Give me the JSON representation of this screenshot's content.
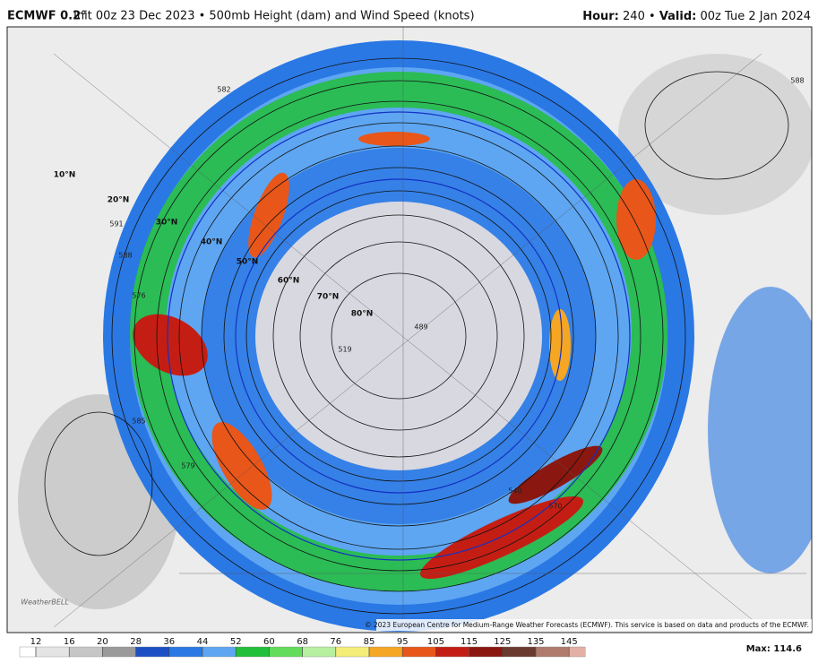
{
  "header": {
    "model": "ECMWF 0.2°",
    "title": "Init 00z 23 Dec 2023 • 500mb Height (dam) and Wind Speed (knots)",
    "hour_label": "Hour:",
    "hour": "240",
    "separator": "•",
    "valid_label": "Valid:",
    "valid": "00z Tue 2 Jan 2024"
  },
  "map": {
    "latitude_labels": [
      "10°N",
      "20°N",
      "30°N",
      "40°N",
      "50°N",
      "60°N",
      "70°N",
      "80°N"
    ],
    "contour_labels": [
      "582",
      "576",
      "588",
      "591",
      "585",
      "579",
      "570",
      "540",
      "519",
      "489",
      "588"
    ],
    "copyright": "© 2023 European Centre for Medium-Range Weather Forecasts (ECMWF). This service is based on data and products of the ECMWF.",
    "watermark": "WeatherBELL"
  },
  "colorbar": {
    "ticks": [
      12,
      16,
      20,
      28,
      36,
      44,
      52,
      60,
      68,
      76,
      85,
      95,
      105,
      115,
      125,
      135,
      145
    ],
    "colors": [
      "#ffffff",
      "#e4e4e4",
      "#c6c6c6",
      "#9a9a9a",
      "#1d4fc4",
      "#2a78e4",
      "#5ea6f2",
      "#22c03a",
      "#62dc5a",
      "#b6f0a0",
      "#f4ee78",
      "#f5a623",
      "#e8561a",
      "#c41e14",
      "#8a1810",
      "#6a3a30",
      "#b07a6c",
      "#e2b0a4"
    ],
    "max_label": "Max:",
    "max": 114.6
  }
}
